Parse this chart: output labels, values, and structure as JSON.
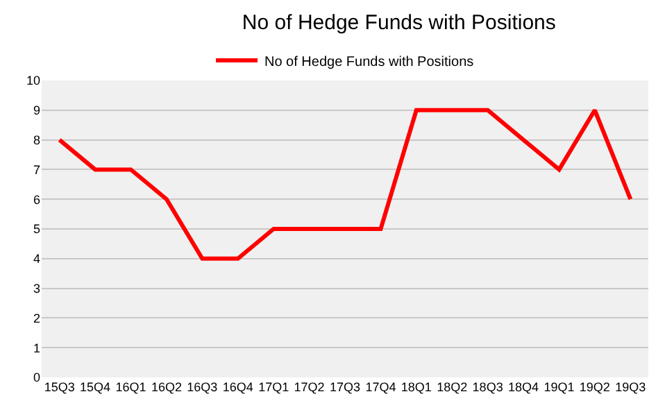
{
  "chart_data": {
    "type": "line",
    "title": "No of Hedge Funds with Positions",
    "categories": [
      "15Q3",
      "15Q4",
      "16Q1",
      "16Q2",
      "16Q3",
      "16Q4",
      "17Q1",
      "17Q2",
      "17Q3",
      "17Q4",
      "18Q1",
      "18Q2",
      "18Q3",
      "18Q4",
      "19Q1",
      "19Q2",
      "19Q3"
    ],
    "series": [
      {
        "name": "No of Hedge Funds with Positions",
        "color": "#ff0000",
        "values": [
          8,
          7,
          7,
          6,
          4,
          4,
          5,
          5,
          5,
          5,
          9,
          9,
          9,
          8,
          7,
          9,
          6
        ]
      }
    ],
    "ylim": [
      0,
      10
    ],
    "yticks": [
      0,
      1,
      2,
      3,
      4,
      5,
      6,
      7,
      8,
      9,
      10
    ],
    "grid": "y",
    "legend": "top",
    "marker": "none",
    "line_style": "solid"
  }
}
